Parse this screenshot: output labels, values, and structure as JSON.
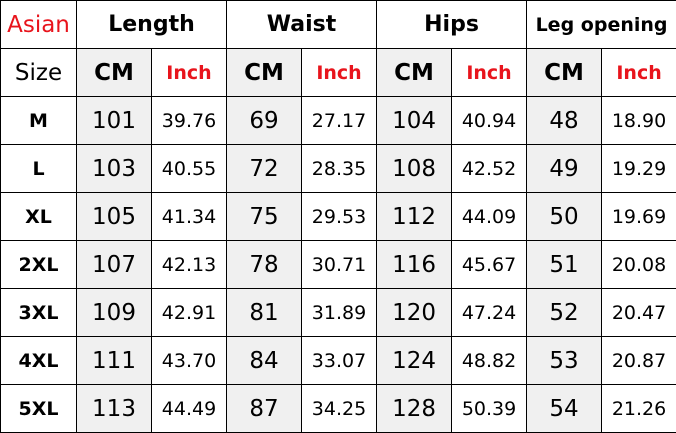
{
  "header": {
    "corner": "Asian",
    "groups": [
      "Length",
      "Waist",
      "Hips",
      "Leg opening"
    ]
  },
  "subheader": {
    "corner": "Size",
    "cm": "CM",
    "inch": "Inch"
  },
  "colors": {
    "accent_red": "#e8141c",
    "cm_bg": "#f0f0f0"
  },
  "rows": [
    {
      "size": "M",
      "values": [
        "101",
        "39.76",
        "69",
        "27.17",
        "104",
        "40.94",
        "48",
        "18.90"
      ]
    },
    {
      "size": "L",
      "values": [
        "103",
        "40.55",
        "72",
        "28.35",
        "108",
        "42.52",
        "49",
        "19.29"
      ]
    },
    {
      "size": "XL",
      "values": [
        "105",
        "41.34",
        "75",
        "29.53",
        "112",
        "44.09",
        "50",
        "19.69"
      ]
    },
    {
      "size": "2XL",
      "values": [
        "107",
        "42.13",
        "78",
        "30.71",
        "116",
        "45.67",
        "51",
        "20.08"
      ]
    },
    {
      "size": "3XL",
      "values": [
        "109",
        "42.91",
        "81",
        "31.89",
        "120",
        "47.24",
        "52",
        "20.47"
      ]
    },
    {
      "size": "4XL",
      "values": [
        "111",
        "43.70",
        "84",
        "33.07",
        "124",
        "48.82",
        "53",
        "20.87"
      ]
    },
    {
      "size": "5XL",
      "values": [
        "113",
        "44.49",
        "87",
        "34.25",
        "128",
        "50.39",
        "54",
        "21.26"
      ]
    }
  ]
}
